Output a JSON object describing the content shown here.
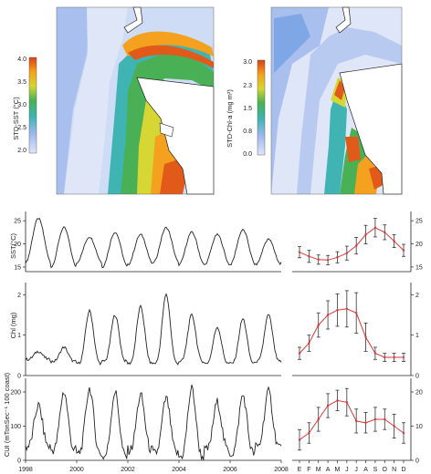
{
  "maps": [
    {
      "ylabel": "STD-SST (°C)",
      "colorbar_ticks": [
        "4.0",
        "3.5",
        "3.0",
        "2.5",
        "2.0"
      ],
      "colorbar_range": [
        2.0,
        4.0
      ],
      "colors": [
        "#4b6cd4",
        "#7fa7e6",
        "#3fb4b2",
        "#3fa857",
        "#d6d634",
        "#f3a11e",
        "#e15a1a"
      ]
    },
    {
      "ylabel": "STD-Chl-a (mg m³)",
      "colorbar_ticks": [
        "3.0",
        "2.3",
        "1.5",
        "0.8",
        "0.0"
      ],
      "colorbar_range": [
        0.0,
        3.0
      ],
      "colors": [
        "#4b6cd4",
        "#7fa7e6",
        "#3fb4b2",
        "#3fa857",
        "#d6d634",
        "#f3a11e",
        "#e15a1a"
      ]
    }
  ],
  "chart_data": [
    {
      "type": "line",
      "ylabel": "SST(°C)",
      "ylim": [
        14,
        27
      ],
      "y_ticks": [
        "15",
        "20",
        "25"
      ],
      "x_ticks": [
        "1998",
        "2000",
        "2002",
        "2004",
        "2006",
        "2008"
      ],
      "xlim": [
        1998,
        2008
      ],
      "series": [
        {
          "peak_values": [
            25.5,
            23.5,
            21.5,
            22.5,
            22,
            23.5,
            22.5,
            22,
            23,
            21,
            22,
            21.5
          ],
          "trough_values": [
            16,
            15,
            16,
            15,
            15.5,
            16,
            15.5,
            15.5,
            15.5,
            15.5,
            16
          ]
        }
      ]
    },
    {
      "type": "line",
      "ylabel": "Chl (mg)",
      "ylim": [
        0,
        2.3
      ],
      "y_ticks": [
        "0",
        "1",
        "2"
      ],
      "x_ticks": [
        "1998",
        "2000",
        "2002",
        "2004",
        "2006",
        "2008"
      ],
      "xlim": [
        1998,
        2008
      ],
      "series": [
        {
          "peak_values": [
            0.6,
            0.7,
            1.6,
            1.5,
            1.7,
            2.0,
            1.5,
            1.2,
            1.4,
            1.5,
            1.3,
            1.5
          ],
          "trough_values": [
            0.4,
            0.35,
            0.3,
            0.35,
            0.3,
            0.3,
            0.35,
            0.3,
            0.3,
            0.35,
            0.3
          ]
        }
      ]
    },
    {
      "type": "line",
      "ylabel": "CUI (mTonSec⁻¹ 100 coast)",
      "ylim": [
        0,
        240
      ],
      "y_ticks": [
        "0",
        "100",
        "200"
      ],
      "x_ticks": [
        "1998",
        "2000",
        "2002",
        "2004",
        "2006",
        "2008"
      ],
      "xlim": [
        1998,
        2008
      ],
      "series": [
        {
          "peak_values": [
            160,
            200,
            210,
            200,
            190,
            180,
            210,
            170,
            190,
            200,
            230,
            200
          ],
          "trough_values": [
            40,
            30,
            20,
            10,
            30,
            20,
            10,
            30,
            20,
            40,
            50
          ]
        }
      ]
    },
    {
      "type": "line",
      "x_ticks": [
        "E",
        "F",
        "M",
        "A",
        "M",
        "J",
        "J",
        "A",
        "S",
        "O",
        "N",
        "D"
      ],
      "right_ticks": [
        "15",
        "20",
        "25"
      ],
      "ylim": [
        14,
        27
      ],
      "series": [
        {
          "values": [
            18.2,
            17.3,
            16.6,
            16.5,
            17.1,
            18.0,
            19.6,
            22.0,
            23.5,
            22.5,
            20.6,
            18.6
          ],
          "error": [
            1.2,
            1.3,
            1.0,
            1.0,
            1.2,
            1.5,
            1.8,
            2.0,
            2.0,
            1.6,
            1.4,
            1.3
          ]
        }
      ]
    },
    {
      "type": "line",
      "x_ticks": [
        "E",
        "F",
        "M",
        "A",
        "M",
        "J",
        "J",
        "A",
        "S",
        "O",
        "N",
        "D"
      ],
      "right_ticks": [
        "0",
        "1",
        "2"
      ],
      "ylim": [
        0,
        2.3
      ],
      "series": [
        {
          "values": [
            0.55,
            0.8,
            1.25,
            1.5,
            1.62,
            1.65,
            1.55,
            0.95,
            0.55,
            0.45,
            0.45,
            0.45
          ],
          "error": [
            0.15,
            0.2,
            0.3,
            0.35,
            0.4,
            0.45,
            0.5,
            0.35,
            0.15,
            0.1,
            0.1,
            0.1
          ]
        }
      ]
    },
    {
      "type": "line",
      "x_ticks": [
        "E",
        "F",
        "M",
        "A",
        "M",
        "J",
        "J",
        "A",
        "S",
        "O",
        "N",
        "D"
      ],
      "right_ticks": [
        "0",
        "10",
        "20"
      ],
      "ylim": [
        0,
        24
      ],
      "series": [
        {
          "values": [
            6,
            8,
            12,
            16,
            17.5,
            17,
            11.5,
            11,
            12,
            12,
            10,
            8
          ],
          "error": [
            3,
            3,
            3.5,
            3.5,
            3,
            4,
            3.5,
            3,
            3.5,
            3,
            3.5,
            3
          ]
        }
      ]
    }
  ]
}
